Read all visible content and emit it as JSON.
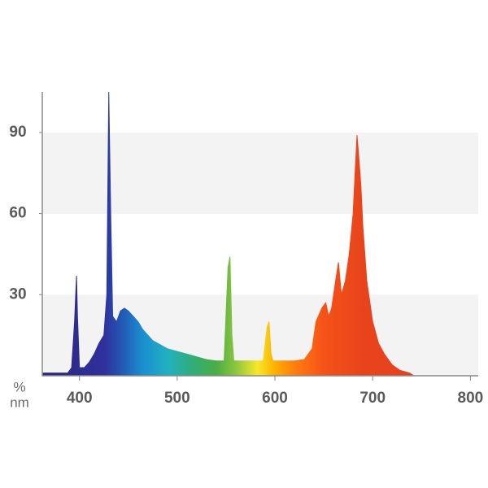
{
  "chart_data": {
    "type": "area",
    "x_label": "nm",
    "y_label": "%",
    "x": [
      362,
      380,
      388,
      392,
      395,
      397,
      398,
      400,
      405,
      410,
      415,
      420,
      425,
      428,
      430,
      432,
      434,
      438,
      442,
      446,
      450,
      455,
      460,
      465,
      470,
      475,
      480,
      490,
      500,
      510,
      520,
      530,
      540,
      548,
      552,
      554,
      556,
      558,
      570,
      580,
      588,
      592,
      594,
      596,
      598,
      610,
      620,
      630,
      638,
      642,
      648,
      652,
      655,
      658,
      662,
      665,
      668,
      672,
      676,
      680,
      682,
      684,
      686,
      688,
      690,
      694,
      700,
      706,
      712,
      720,
      728,
      738,
      742
    ],
    "values": [
      1,
      1,
      1,
      3,
      20,
      37,
      22,
      3,
      3,
      5,
      8,
      12,
      15,
      30,
      105,
      60,
      22,
      20,
      24,
      25,
      24,
      22,
      20,
      17,
      15,
      13,
      12,
      10,
      9,
      8,
      7,
      6,
      5.5,
      5.5,
      40,
      44,
      15,
      5.5,
      5.5,
      5.5,
      5.5,
      18,
      20,
      8,
      5.5,
      5.5,
      5.5,
      6,
      10,
      20,
      25,
      27,
      22,
      25,
      35,
      42,
      30,
      35,
      45,
      60,
      75,
      89,
      80,
      70,
      55,
      35,
      20,
      12,
      8,
      4,
      2,
      1,
      0
    ],
    "xlim": [
      362,
      808
    ],
    "ylim": [
      0,
      105
    ],
    "xticks": [
      400,
      500,
      600,
      700,
      800
    ],
    "yticks": [
      30,
      60,
      90
    ],
    "grid": true
  }
}
